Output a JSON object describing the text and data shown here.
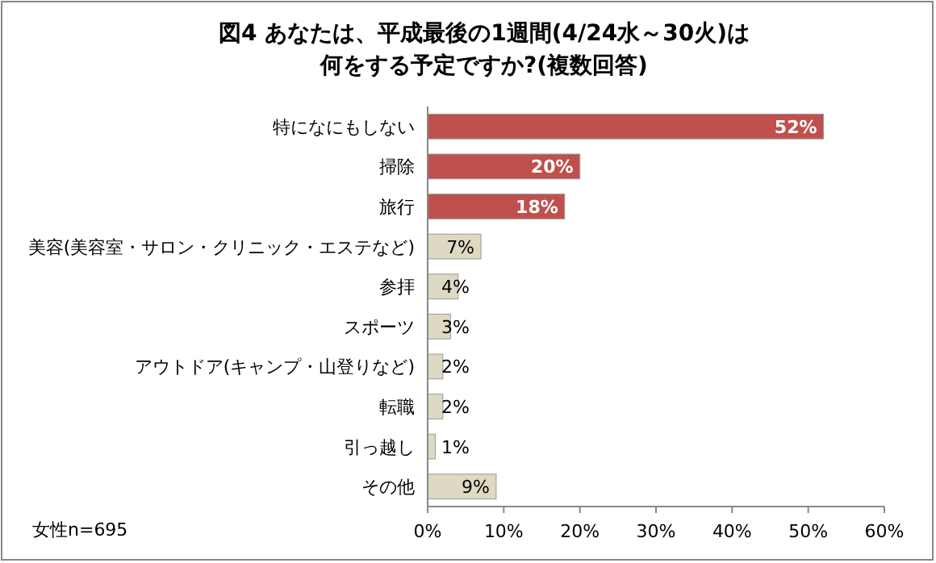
{
  "chart_data": {
    "type": "bar",
    "orientation": "horizontal",
    "title": "図4  あなたは、平成最後の1週間(4/24水～30火)は何をする予定ですか?(複数回答)",
    "categories": [
      "特になにもしない",
      "掃除",
      "旅行",
      "美容(美容室・サロン・クリニック・エステなど)",
      "参拝",
      "スポーツ",
      "アウトドア(キャンプ・山登りなど)",
      "転職",
      "引っ越し",
      "その他"
    ],
    "values": [
      52,
      20,
      18,
      7,
      4,
      3,
      2,
      2,
      1,
      9
    ],
    "colors": [
      "#c0504d",
      "#c0504d",
      "#c0504d",
      "#ddd9c3",
      "#ddd9c3",
      "#ddd9c3",
      "#ddd9c3",
      "#ddd9c3",
      "#ddd9c3",
      "#ddd9c3"
    ],
    "value_labels": [
      "52%",
      "20%",
      "18%",
      "7%",
      "4%",
      "3%",
      "2%",
      "2%",
      "1%",
      "9%"
    ],
    "xlim": [
      0,
      60
    ],
    "xticks": [
      {
        "value": 0,
        "label": "0%"
      },
      {
        "value": 10,
        "label": "10%"
      },
      {
        "value": 20,
        "label": "20%"
      },
      {
        "value": 30,
        "label": "30%"
      },
      {
        "value": 40,
        "label": "40%"
      },
      {
        "value": 50,
        "label": "50%"
      },
      {
        "value": 60,
        "label": "60%"
      }
    ],
    "grid": false,
    "annotations": [
      "女性n=695"
    ]
  }
}
